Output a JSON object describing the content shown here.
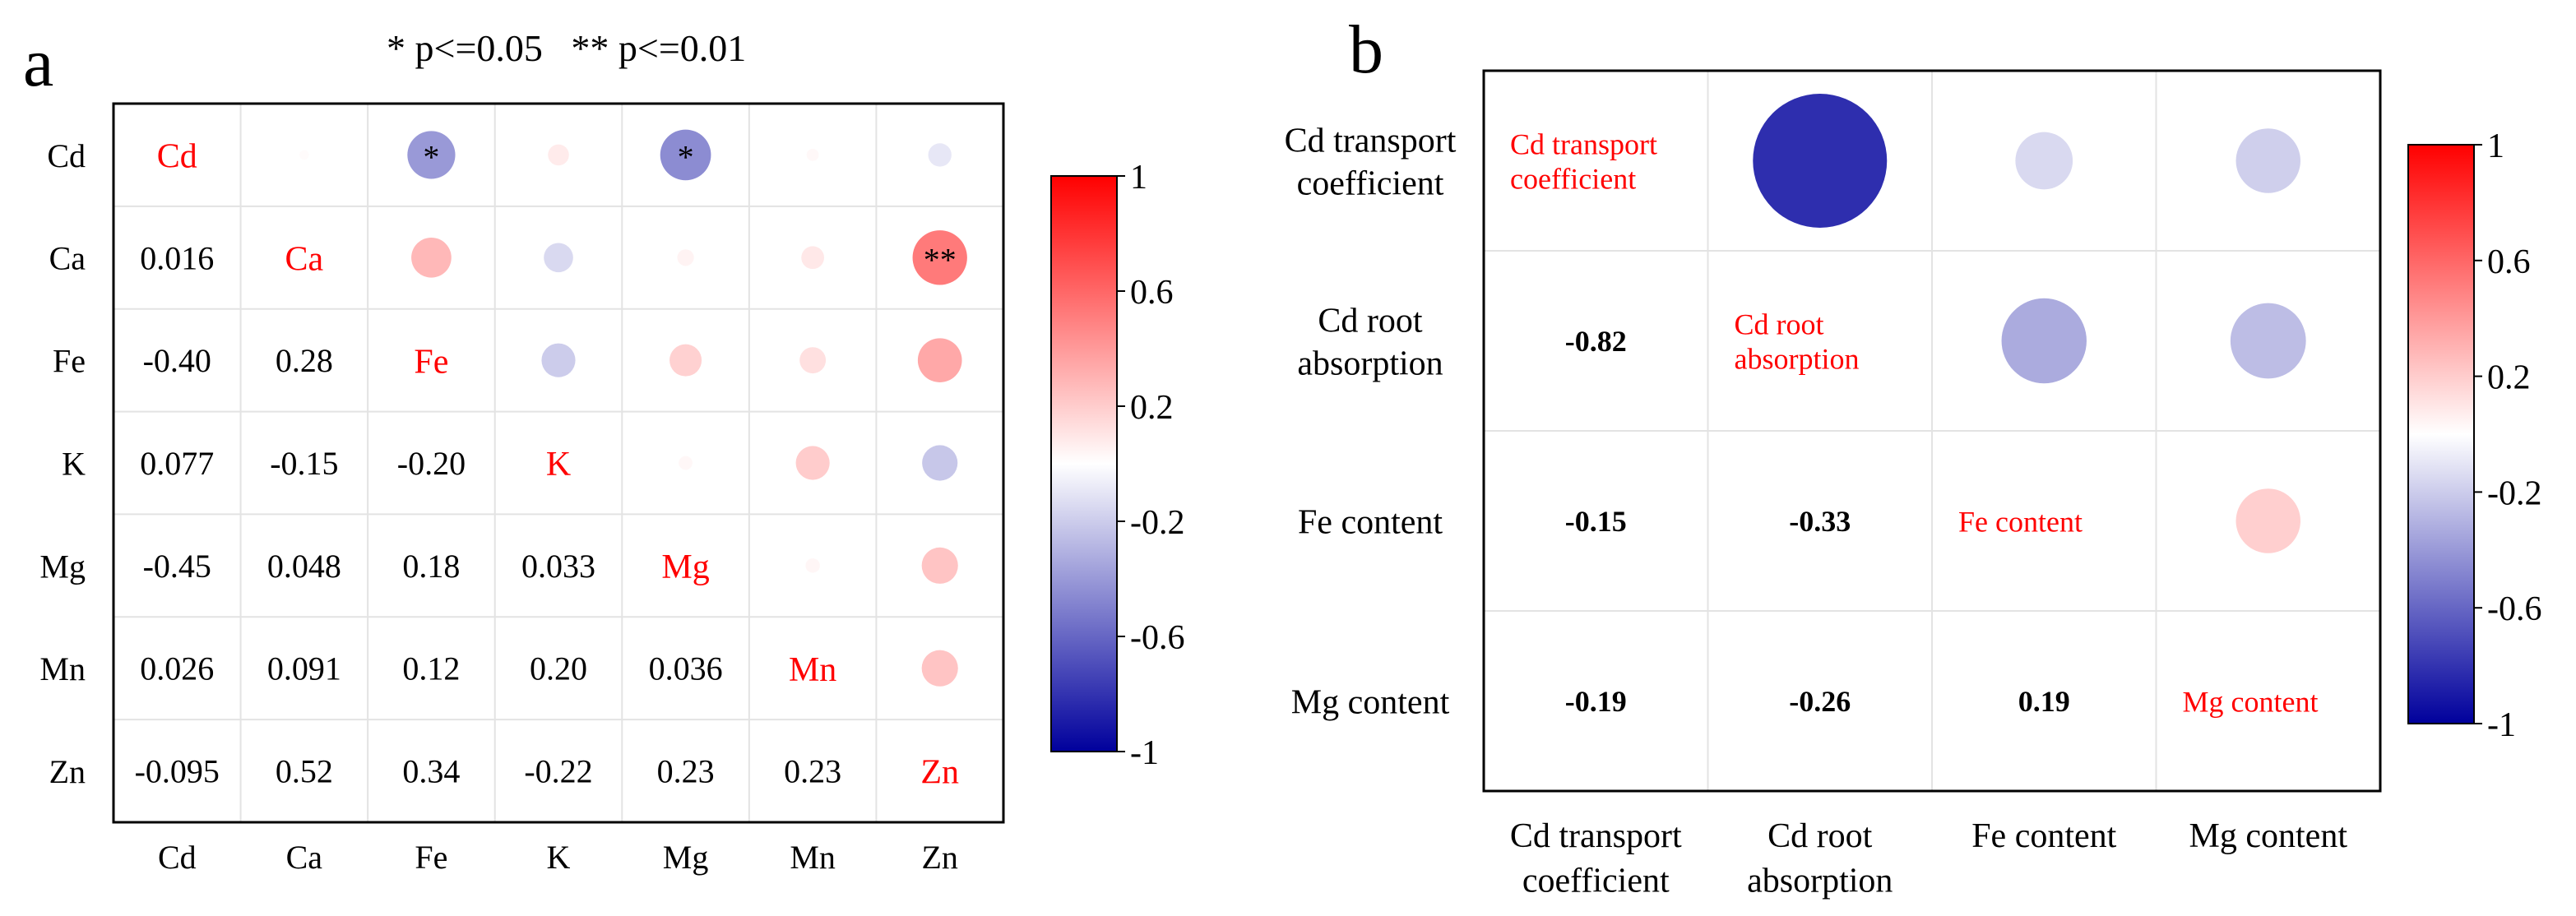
{
  "panel_a_label": "a",
  "panel_b_label": "b",
  "significance_legend": "* p<=0.05   ** p<=0.01",
  "chart_data": [
    {
      "type": "heatmap",
      "panel": "a",
      "variables": [
        "Cd",
        "Ca",
        "Fe",
        "K",
        "Mg",
        "Mn",
        "Zn"
      ],
      "row_labels": [
        "Cd",
        "Ca",
        "Fe",
        "K",
        "Mg",
        "Mn",
        "Zn"
      ],
      "col_labels": [
        "Cd",
        "Ca",
        "Fe",
        "K",
        "Mg",
        "Mn",
        "Zn"
      ],
      "lower_triangle_labels": [
        [],
        [
          "0.016"
        ],
        [
          "-0.40",
          "0.28"
        ],
        [
          "0.077",
          "-0.15",
          "-0.20"
        ],
        [
          "-0.45",
          "0.048",
          "0.18",
          "0.033"
        ],
        [
          "0.026",
          "0.091",
          "0.12",
          "0.20",
          "0.036"
        ],
        [
          "-0.095",
          "0.52",
          "0.34",
          "-0.22",
          "0.23",
          "0.23"
        ]
      ],
      "lower_triangle": [
        [],
        [
          0.016
        ],
        [
          -0.4,
          0.28
        ],
        [
          0.077,
          -0.15,
          -0.2
        ],
        [
          -0.45,
          0.048,
          0.18,
          0.033
        ],
        [
          0.026,
          0.091,
          0.12,
          0.2,
          0.036
        ],
        [
          -0.095,
          0.52,
          0.34,
          -0.22,
          0.23,
          0.23
        ]
      ],
      "significance": [
        {
          "row": 0,
          "col": 2,
          "mark": "*"
        },
        {
          "row": 0,
          "col": 4,
          "mark": "*"
        },
        {
          "row": 1,
          "col": 6,
          "mark": "**"
        }
      ],
      "colorbar": {
        "range": [
          -1,
          1
        ],
        "ticks": [
          "1",
          "0.6",
          "0.2",
          "-0.2",
          "-0.6",
          "-1"
        ],
        "tick_values": [
          1,
          0.6,
          0.2,
          -0.2,
          -0.6,
          -1
        ]
      },
      "colors": {
        "positive": "#ff0000",
        "negative": "#00009c",
        "diagonal_text": "#ff0000"
      }
    },
    {
      "type": "heatmap",
      "panel": "b",
      "variables": [
        "Cd transport coefficient",
        "Cd root absorption",
        "Fe content",
        "Mg content"
      ],
      "row_labels": [
        [
          "Cd transport",
          "coefficient"
        ],
        [
          "Cd root",
          "absorption"
        ],
        [
          "Fe content"
        ],
        [
          "Mg content"
        ]
      ],
      "col_labels": [
        [
          "Cd transport",
          "coefficient"
        ],
        [
          "Cd root",
          "absorption"
        ],
        [
          "Fe content"
        ],
        [
          "Mg content"
        ]
      ],
      "diagonal_labels": [
        [
          "Cd transport",
          "coefficient"
        ],
        [
          "Cd root",
          "absorption"
        ],
        [
          "Fe content"
        ],
        [
          "Mg content"
        ]
      ],
      "lower_triangle_labels": [
        [],
        [
          "-0.82"
        ],
        [
          "-0.15",
          "-0.33"
        ],
        [
          "-0.19",
          "-0.26",
          "0.19"
        ]
      ],
      "lower_triangle": [
        [],
        [
          -0.82
        ],
        [
          -0.15,
          -0.33
        ],
        [
          -0.19,
          -0.26,
          0.19
        ]
      ],
      "significance": [],
      "colorbar": {
        "range": [
          -1,
          1
        ],
        "ticks": [
          "1",
          "0.6",
          "0.2",
          "-0.2",
          "-0.6",
          "-1"
        ],
        "tick_values": [
          1,
          0.6,
          0.2,
          -0.2,
          -0.6,
          -1
        ]
      },
      "colors": {
        "positive": "#ff0000",
        "negative": "#00009c",
        "diagonal_text": "#ff0000"
      }
    }
  ]
}
